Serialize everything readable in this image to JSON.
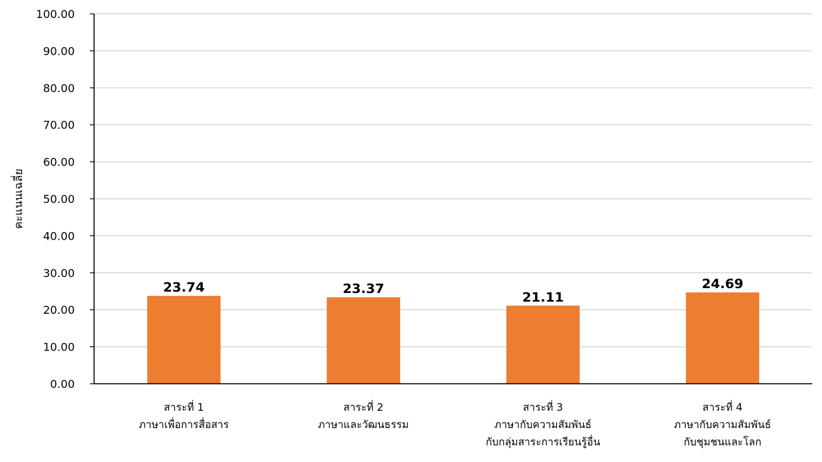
{
  "chart_data": {
    "type": "bar",
    "title": "",
    "xlabel": "",
    "ylabel": "คะแนนเฉลี่ย",
    "ylim": [
      0,
      100
    ],
    "yticks": [
      "0.00",
      "10.00",
      "20.00",
      "30.00",
      "40.00",
      "50.00",
      "60.00",
      "70.00",
      "80.00",
      "90.00",
      "100.00"
    ],
    "grid": true,
    "legend": "none",
    "bar_color": "#ED7D31",
    "grid_color": "#D9D9D9",
    "categories": [
      [
        "สาระที่ 1",
        "ภาษาเพื่อการสื่อสาร"
      ],
      [
        "สาระที่ 2",
        "ภาษาและวัฒนธรรม"
      ],
      [
        "สาระที่ 3",
        "ภาษากับความสัมพันธ์",
        "กับกลุ่มสาระการเรียนรู้อื่น"
      ],
      [
        "สาระที่ 4",
        "ภาษากับความสัมพันธ์",
        "กับชุมชนและโลก"
      ]
    ],
    "values": [
      23.74,
      23.37,
      21.11,
      24.69
    ],
    "value_labels": [
      "23.74",
      "23.37",
      "21.11",
      "24.69"
    ]
  }
}
